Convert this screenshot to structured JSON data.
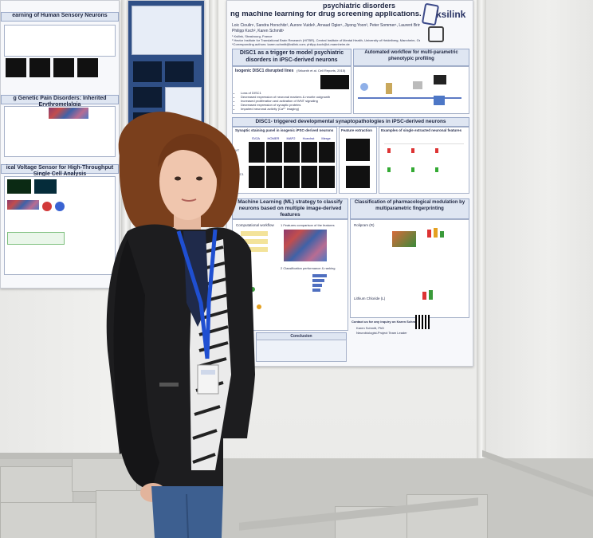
{
  "posters": {
    "left": {
      "section1": "earning of Human Sensory Neurons",
      "section2": "g Genetic Pain Disorders: Inherited Erythromelalgia",
      "section3": "ical Voltage Sensor for High-Throughput Single Cell Analysis"
    },
    "main": {
      "title_line1": "psychiatric  disorders",
      "title_line2": "ng machine learning for drug screening applications.",
      "authors_line1": "Loic Cioulin¹, Sandra Horschitz², Aurore Vuidel¹, Arnaud Ogier¹, Jiyong Yoon³, Peter Sommer¹, Laurent Brino¹,",
      "authors_line2": "Philipp Koch², Karen Schmitt¹",
      "affiliation1": "¹ Ksilink, Strasbourg, France",
      "affiliation2": "² Hector Institute for Translational Brain Research (HITBR), Central Institute of Mental Health, University of Heidelberg, Mannheim, Germany",
      "affiliation3": "*Corresponding authors: karen.schmitt@ksilink.com; philipp.koch@zi-mannheim.de",
      "logo_text": "ksilink",
      "section_disc1": "DISC1 as a trigger to model psychiatric disorders in iPSC-derived neurons",
      "isogenic_label": "Isogenic DISC1 disrupted lines",
      "isogenic_source": "(Srikanth et al. Cell Reports, 2015)",
      "bullets": [
        "Loss of DISC1",
        "Decreased expression of neuronal markers & neurite outgrowth",
        "Increased proliferation and activation of WNT signaling",
        "Decreased expression of synaptic proteins",
        "Impaired neuronal activity (Ca²⁺ imaging)"
      ],
      "section_workflow": "Automated workflow for multi-parametric phenotypic profiling",
      "section_synapto": "DISC1- triggered developmental synaptopathologies in iPSC-derived neurons",
      "staining_title": "Synaptic staining panel in isogenic iPSC-derived neurons",
      "stain_labels": [
        "SV2A",
        "HOMER",
        "MAP2",
        "Hoechst",
        "Merge"
      ],
      "row_labels": [
        "WT",
        "DISC1"
      ],
      "feature_extraction": "Feature extraction",
      "examples_title": "Examples of single extracted neuronal features",
      "section_ml": "Machine Learning (ML) strategy to classify neurons based on multiple image-derived features",
      "computational_workflow": "Computational workflow",
      "panel1": "1  Features comparison of the features",
      "panel2": "2  Classification performance & ranking",
      "section_pharma": "Classification of pharmacological modulation by multiparametric fingerprinting",
      "compound1": "Rolipram (R)",
      "compound2": "Lithium Chloride (L)",
      "conclusion": "Conclusion",
      "contact": "Contact us for any inquiry on Karen Schmitt",
      "contact_name": "Karen Schmitt, PhD",
      "contact_role": "Neurobiologist-Project Team Leader"
    }
  },
  "colors": {
    "poster_header": "#dfe6f2",
    "poster_blue": "#2f4f86",
    "jacket": "#1d1d1f",
    "lanyard": "#1f4fd1",
    "jeans": "#3d5f90",
    "hair": "#7a3f1c"
  }
}
